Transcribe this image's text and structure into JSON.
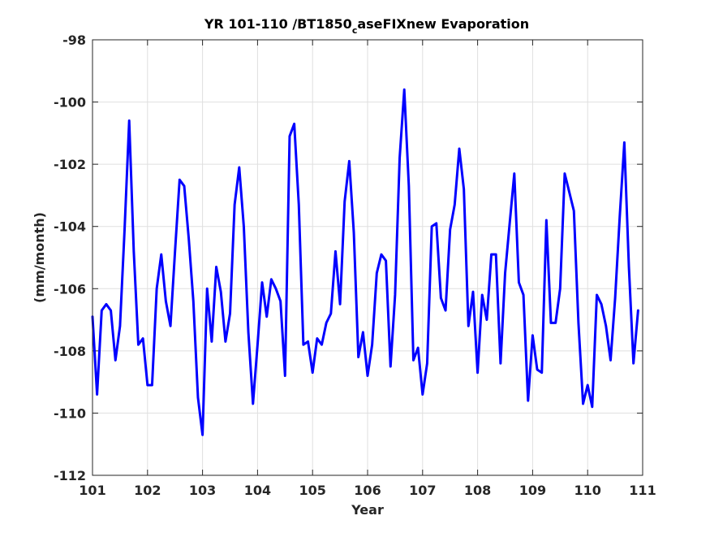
{
  "title_parts": {
    "main": "YR 101-110 /BT1850",
    "subscript": "c",
    "rest": "aseFIXnew Evaporation"
  },
  "chart_data": {
    "type": "line",
    "title": "YR 101-110 /BT1850_caseFIXnew Evaporation",
    "xlabel": "Year",
    "ylabel": "(mm/month)",
    "xlim": [
      101,
      111
    ],
    "ylim": [
      -112,
      -98
    ],
    "xticks": [
      101,
      102,
      103,
      104,
      105,
      106,
      107,
      108,
      109,
      110,
      111
    ],
    "yticks": [
      -112,
      -110,
      -108,
      -106,
      -104,
      -102,
      -100,
      -98
    ],
    "grid": true,
    "line_color": "#0000ff",
    "series": [
      {
        "x": [
          101.0,
          101.083,
          101.167,
          101.25,
          101.333,
          101.417,
          101.5,
          101.583,
          101.667,
          101.75,
          101.833,
          101.917,
          102.0,
          102.083,
          102.167,
          102.25,
          102.333,
          102.417,
          102.5,
          102.583,
          102.667,
          102.75,
          102.833,
          102.917,
          103.0,
          103.083,
          103.167,
          103.25,
          103.333,
          103.417,
          103.5,
          103.583,
          103.667,
          103.75,
          103.833,
          103.917,
          104.0,
          104.083,
          104.167,
          104.25,
          104.333,
          104.417,
          104.5,
          104.583,
          104.667,
          104.75,
          104.833,
          104.917,
          105.0,
          105.083,
          105.167,
          105.25,
          105.333,
          105.417,
          105.5,
          105.583,
          105.667,
          105.75,
          105.833,
          105.917,
          106.0,
          106.083,
          106.167,
          106.25,
          106.333,
          106.417,
          106.5,
          106.583,
          106.667,
          106.75,
          106.833,
          106.917,
          107.0,
          107.083,
          107.167,
          107.25,
          107.333,
          107.417,
          107.5,
          107.583,
          107.667,
          107.75,
          107.833,
          107.917,
          108.0,
          108.083,
          108.167,
          108.25,
          108.333,
          108.417,
          108.5,
          108.583,
          108.667,
          108.75,
          108.833,
          108.917,
          109.0,
          109.083,
          109.167,
          109.25,
          109.333,
          109.417,
          109.5,
          109.583,
          109.667,
          109.75,
          109.833,
          109.917,
          110.0,
          110.083,
          110.167,
          110.25,
          110.333,
          110.417,
          110.5,
          110.583,
          110.667,
          110.75,
          110.833,
          110.917
        ],
        "values": [
          -106.9,
          -109.4,
          -106.7,
          -106.5,
          -106.7,
          -108.3,
          -107.2,
          -104.1,
          -100.6,
          -104.8,
          -107.8,
          -107.6,
          -109.1,
          -109.1,
          -106.0,
          -104.9,
          -106.4,
          -107.2,
          -104.8,
          -102.5,
          -102.7,
          -104.4,
          -106.4,
          -109.5,
          -110.7,
          -106.0,
          -107.7,
          -105.3,
          -106.1,
          -107.7,
          -106.8,
          -103.3,
          -102.1,
          -104.0,
          -107.4,
          -109.7,
          -107.8,
          -105.8,
          -106.9,
          -105.7,
          -106.0,
          -106.4,
          -108.8,
          -101.1,
          -100.7,
          -103.3,
          -107.8,
          -107.7,
          -108.7,
          -107.6,
          -107.8,
          -107.1,
          -106.8,
          -104.8,
          -106.5,
          -103.2,
          -101.9,
          -104.2,
          -108.2,
          -107.4,
          -108.8,
          -107.8,
          -105.5,
          -104.9,
          -105.1,
          -108.5,
          -106.2,
          -101.8,
          -99.6,
          -102.7,
          -108.3,
          -107.9,
          -109.4,
          -108.4,
          -104.0,
          -103.9,
          -106.3,
          -106.7,
          -104.1,
          -103.3,
          -101.5,
          -102.8,
          -107.2,
          -106.1,
          -108.7,
          -106.2,
          -107.0,
          -104.9,
          -104.9,
          -108.4,
          -105.5,
          -103.9,
          -102.3,
          -105.8,
          -106.2,
          -109.6,
          -107.5,
          -108.6,
          -108.7,
          -103.8,
          -107.1,
          -107.1,
          -106.0,
          -102.3,
          -102.9,
          -103.5,
          -107.1,
          -109.7,
          -109.1,
          -109.8,
          -106.2,
          -106.5,
          -107.2,
          -108.3,
          -106.3,
          -103.7,
          -101.3,
          -105.3,
          -108.4,
          -106.7
        ]
      }
    ]
  }
}
